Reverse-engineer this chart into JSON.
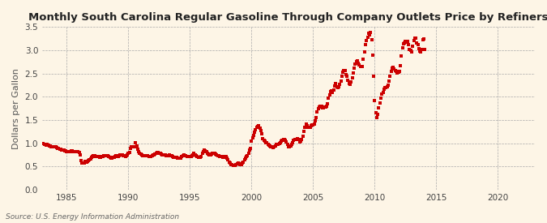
{
  "title": "Monthly South Carolina Regular Gasoline Through Company Outlets Price by Refiners",
  "ylabel": "Dollars per Gallon",
  "source": "Source: U.S. Energy Information Administration",
  "background_color": "#fdf5e6",
  "dot_color": "#cc0000",
  "xlim": [
    1983,
    2023
  ],
  "ylim": [
    0.0,
    3.5
  ],
  "xticks": [
    1985,
    1990,
    1995,
    2000,
    2005,
    2010,
    2015,
    2020
  ],
  "yticks": [
    0.0,
    0.5,
    1.0,
    1.5,
    2.0,
    2.5,
    3.0,
    3.5
  ],
  "prices": [
    1.0,
    0.98,
    0.97,
    0.96,
    0.97,
    0.96,
    0.95,
    0.94,
    0.93,
    0.92,
    0.93,
    0.93,
    0.93,
    0.91,
    0.9,
    0.89,
    0.88,
    0.87,
    0.86,
    0.86,
    0.85,
    0.84,
    0.84,
    0.83,
    0.82,
    0.82,
    0.83,
    0.84,
    0.84,
    0.83,
    0.82,
    0.82,
    0.82,
    0.82,
    0.82,
    0.81,
    0.76,
    0.63,
    0.57,
    0.57,
    0.58,
    0.61,
    0.6,
    0.61,
    0.63,
    0.64,
    0.67,
    0.7,
    0.72,
    0.73,
    0.74,
    0.72,
    0.71,
    0.71,
    0.71,
    0.7,
    0.7,
    0.71,
    0.72,
    0.73,
    0.73,
    0.74,
    0.74,
    0.73,
    0.71,
    0.7,
    0.69,
    0.69,
    0.7,
    0.7,
    0.71,
    0.73,
    0.72,
    0.72,
    0.74,
    0.76,
    0.76,
    0.75,
    0.74,
    0.73,
    0.72,
    0.73,
    0.76,
    0.78,
    0.81,
    0.89,
    0.92,
    0.93,
    0.93,
    0.92,
    1.01,
    0.95,
    0.87,
    0.82,
    0.78,
    0.77,
    0.76,
    0.74,
    0.74,
    0.73,
    0.73,
    0.73,
    0.73,
    0.72,
    0.72,
    0.72,
    0.73,
    0.75,
    0.75,
    0.77,
    0.79,
    0.8,
    0.8,
    0.79,
    0.78,
    0.77,
    0.76,
    0.75,
    0.75,
    0.75,
    0.73,
    0.73,
    0.74,
    0.75,
    0.74,
    0.73,
    0.72,
    0.7,
    0.7,
    0.7,
    0.7,
    0.69,
    0.68,
    0.68,
    0.69,
    0.71,
    0.73,
    0.75,
    0.74,
    0.73,
    0.72,
    0.72,
    0.72,
    0.71,
    0.71,
    0.73,
    0.76,
    0.78,
    0.76,
    0.73,
    0.71,
    0.7,
    0.7,
    0.7,
    0.71,
    0.78,
    0.83,
    0.86,
    0.84,
    0.82,
    0.79,
    0.77,
    0.76,
    0.76,
    0.77,
    0.79,
    0.78,
    0.78,
    0.77,
    0.76,
    0.74,
    0.73,
    0.72,
    0.71,
    0.71,
    0.7,
    0.7,
    0.71,
    0.72,
    0.68,
    0.64,
    0.6,
    0.57,
    0.55,
    0.54,
    0.53,
    0.53,
    0.53,
    0.54,
    0.56,
    0.57,
    0.56,
    0.55,
    0.55,
    0.57,
    0.6,
    0.64,
    0.69,
    0.72,
    0.74,
    0.79,
    0.85,
    0.89,
    1.05,
    1.12,
    1.17,
    1.24,
    1.29,
    1.35,
    1.37,
    1.38,
    1.32,
    1.27,
    1.21,
    1.1,
    1.07,
    1.04,
    1.02,
    1.01,
    0.98,
    0.96,
    0.94,
    0.93,
    0.92,
    0.91,
    0.92,
    0.95,
    0.97,
    0.97,
    0.98,
    0.99,
    1.01,
    1.04,
    1.07,
    1.09,
    1.08,
    1.06,
    1.03,
    0.97,
    0.93,
    0.92,
    0.94,
    0.98,
    1.02,
    1.06,
    1.08,
    1.08,
    1.09,
    1.1,
    1.08,
    1.03,
    1.04,
    1.09,
    1.15,
    1.26,
    1.35,
    1.41,
    1.38,
    1.35,
    1.34,
    1.35,
    1.38,
    1.4,
    1.4,
    1.42,
    1.48,
    1.55,
    1.67,
    1.75,
    1.78,
    1.79,
    1.79,
    1.77,
    1.77,
    1.78,
    1.78,
    1.8,
    1.85,
    1.97,
    2.05,
    2.12,
    2.13,
    2.09,
    2.15,
    2.24,
    2.28,
    2.21,
    2.2,
    2.22,
    2.26,
    2.33,
    2.44,
    2.53,
    2.57,
    2.57,
    2.48,
    2.45,
    2.36,
    2.28,
    2.26,
    2.32,
    2.4,
    2.52,
    2.62,
    2.7,
    2.75,
    2.77,
    2.72,
    2.69,
    2.65,
    2.65,
    2.66,
    2.81,
    2.97,
    3.12,
    3.21,
    3.28,
    3.37,
    3.34,
    3.38,
    3.22,
    2.9,
    2.44,
    1.92,
    1.65,
    1.56,
    1.62,
    1.76,
    1.86,
    1.97,
    2.06,
    2.1,
    2.16,
    2.19,
    2.2,
    2.22,
    2.25,
    2.34,
    2.44,
    2.55,
    2.62,
    2.63,
    2.6,
    2.57,
    2.54,
    2.51,
    2.53,
    2.55,
    2.67,
    2.87,
    3.05,
    3.14,
    3.15,
    3.19,
    3.17,
    3.2,
    3.12,
    3.02,
    3.0,
    2.97,
    3.08,
    3.21,
    3.27,
    3.26,
    3.16,
    3.12,
    3.04,
    2.98,
    2.97,
    3.01,
    3.23,
    3.25,
    3.01
  ],
  "start_year": 1983,
  "start_month": 2
}
